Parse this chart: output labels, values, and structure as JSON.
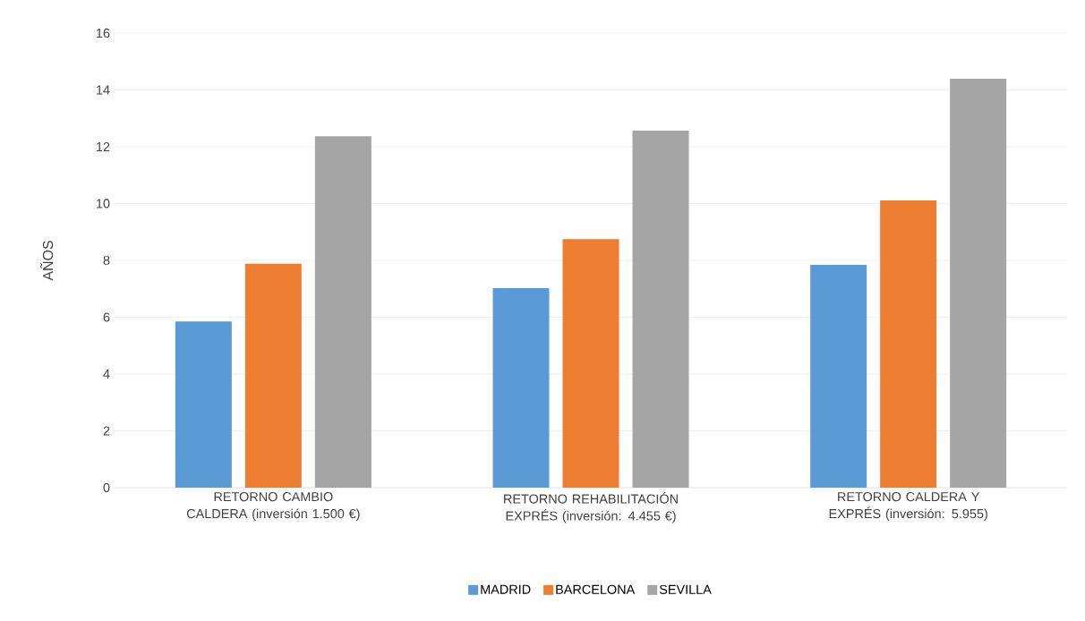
{
  "chart_data": {
    "type": "bar",
    "ylabel": "AÑOS",
    "categories": [
      "RETORNO CAMBIO CALDERA (inversión 1.500 €)",
      "RETORNO REHABILITACIÓN EXPRÉS (inversión: 4.455 €)",
      "RETORNO CALDERA Y EXPRÉS (inversión: 5.955)"
    ],
    "series": [
      {
        "name": "MADRID",
        "color": "#5b9bd5",
        "values": [
          5.85,
          7.02,
          7.84
        ]
      },
      {
        "name": "BARCELONA",
        "color": "#ed7d31",
        "values": [
          7.88,
          8.75,
          10.11
        ]
      },
      {
        "name": "SEVILLA",
        "color": "#a5a5a5",
        "values": [
          12.37,
          12.57,
          14.39
        ]
      }
    ],
    "ylim": [
      0,
      16
    ],
    "yticks": [
      0,
      2,
      4,
      6,
      8,
      10,
      12,
      14,
      16
    ],
    "grid": "y",
    "legend": "bottom"
  }
}
